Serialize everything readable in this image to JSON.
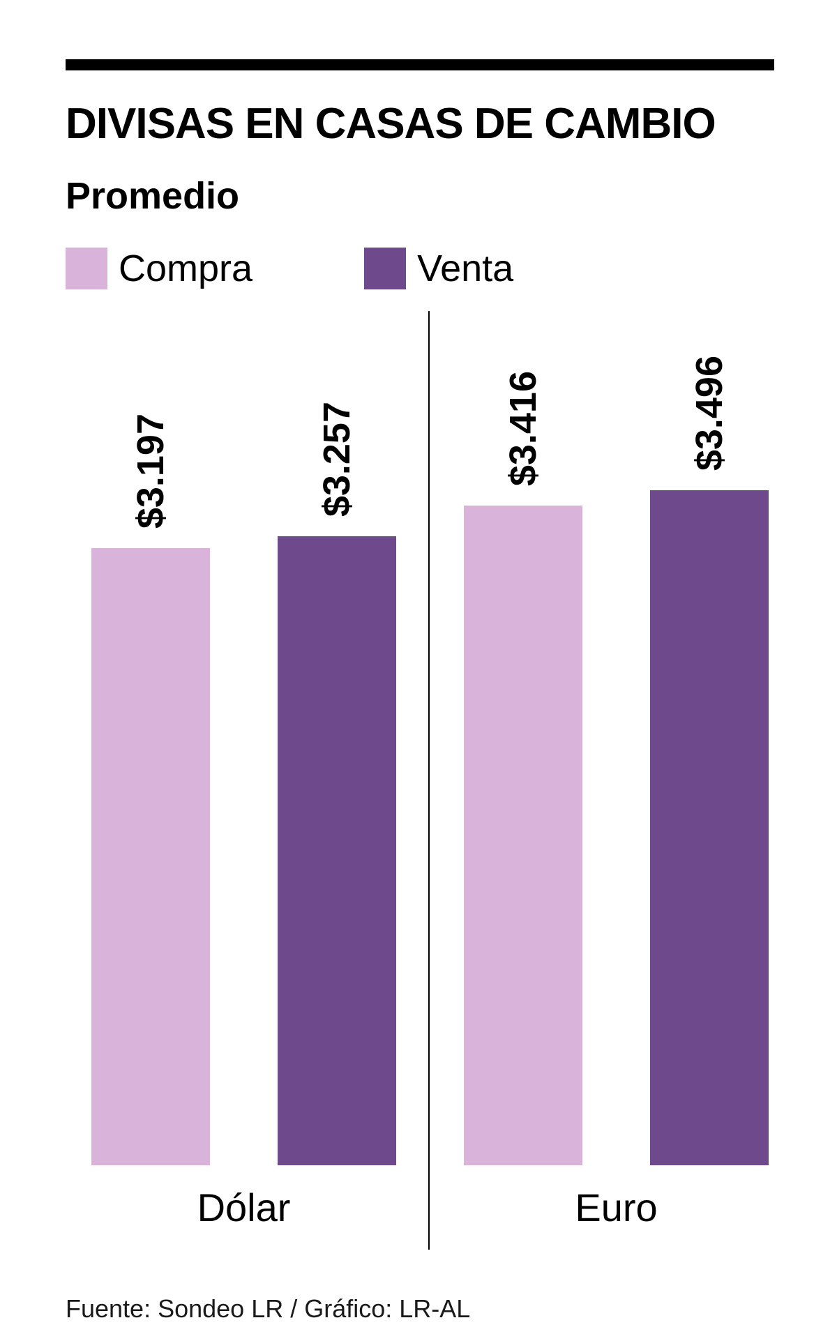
{
  "chart_data": {
    "type": "bar",
    "title": "DIVISAS EN CASAS DE CAMBIO",
    "subtitle": "Promedio",
    "categories": [
      "Dólar",
      "Euro"
    ],
    "series": [
      {
        "name": "Compra",
        "color": "#d9b3d9",
        "values": [
          3.197,
          3.416
        ],
        "display_values": [
          "$3.197",
          "$3.416"
        ]
      },
      {
        "name": "Venta",
        "color": "#6e4a8d",
        "values": [
          3.257,
          3.496
        ],
        "display_values": [
          "$3.257",
          "$3.496"
        ]
      }
    ],
    "ylim": [
      0,
      3.496
    ],
    "grid": false,
    "legend_position": "top-left",
    "value_labels_rotated": true,
    "source": "Fuente: Sondeo LR / Gráfico: LR-AL"
  }
}
